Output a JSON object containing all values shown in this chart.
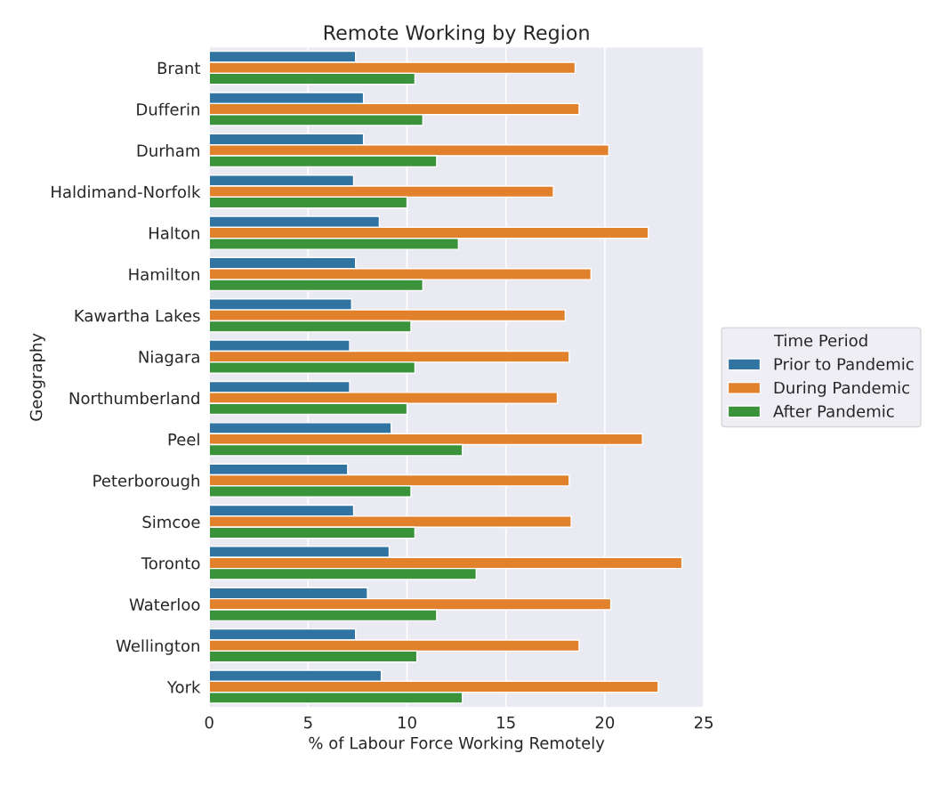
{
  "chart_data": {
    "type": "bar",
    "orientation": "horizontal",
    "title": "Remote Working by Region",
    "xlabel": "% of Labour Force Working Remotely",
    "ylabel": "Geography",
    "legend_title": "Time Period",
    "legend": "right",
    "categories": [
      "Brant",
      "Dufferin",
      "Durham",
      "Haldimand-Norfolk",
      "Halton",
      "Hamilton",
      "Kawartha Lakes",
      "Niagara",
      "Northumberland",
      "Peel",
      "Peterborough",
      "Simcoe",
      "Toronto",
      "Waterloo",
      "Wellington",
      "York"
    ],
    "series": [
      {
        "name": "Prior to Pandemic",
        "color": "#3274a1",
        "values": [
          7.4,
          7.8,
          7.8,
          7.3,
          8.6,
          7.4,
          7.2,
          7.1,
          7.1,
          9.2,
          7.0,
          7.3,
          9.1,
          8.0,
          7.4,
          8.7
        ]
      },
      {
        "name": "During Pandemic",
        "color": "#e1812c",
        "values": [
          18.5,
          18.7,
          20.2,
          17.4,
          22.2,
          19.3,
          18.0,
          18.2,
          17.6,
          21.9,
          18.2,
          18.3,
          23.9,
          20.3,
          18.7,
          22.7
        ]
      },
      {
        "name": "After Pandemic",
        "color": "#3a923a",
        "values": [
          10.4,
          10.8,
          11.5,
          10.0,
          12.6,
          10.8,
          10.2,
          10.4,
          10.0,
          12.8,
          10.2,
          10.4,
          13.5,
          11.5,
          10.5,
          12.8
        ]
      }
    ],
    "xlim": [
      0,
      25
    ],
    "xticks": [
      0,
      5,
      10,
      15,
      20,
      25
    ],
    "grid": "x"
  }
}
